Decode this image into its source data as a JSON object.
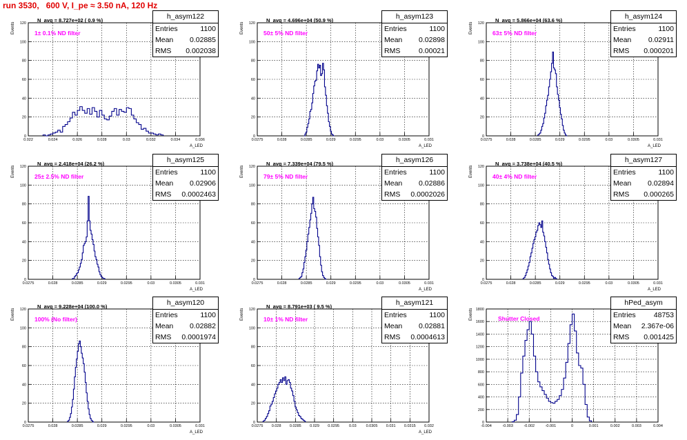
{
  "run_title": "run 3530,   600 V, I_pe ≈ 3.50 nA, 120 Hz",
  "stat_labels": {
    "entries": "Entries",
    "mean": "Mean",
    "rms": "RMS"
  },
  "chart_data": [
    {
      "type": "histogram",
      "name": "h_asym122",
      "title": "N_avg = 8.727e+02 ( 0.9 %)",
      "annotation": "1± 0.1% ND filter",
      "ylabel": "Events",
      "xlabel": "A_LED",
      "stats": {
        "entries": "1100",
        "mean": "0.02885",
        "rms": "0.002038"
      },
      "xlim": [
        0.022,
        0.036
      ],
      "ylim": [
        0,
        120
      ],
      "xticks": [
        0.022,
        0.024,
        0.026,
        0.028,
        0.03,
        0.032,
        0.034,
        0.036
      ],
      "xtick_labels": [
        "0.022",
        "0.024",
        "0.026",
        "0.028",
        "0.03",
        "0.032",
        "0.034",
        "0.036"
      ],
      "yticks": [
        0,
        20,
        40,
        60,
        80,
        100,
        120
      ],
      "ytick_labels": [
        "0",
        "20",
        "40",
        "60",
        "80",
        "100",
        "120"
      ],
      "bins": {
        "start": 0.0232,
        "width": 0.0002,
        "values": [
          1,
          0,
          1,
          2,
          3,
          4,
          6,
          4,
          10,
          12,
          15,
          19,
          25,
          22,
          27,
          31,
          27,
          24,
          29,
          23,
          30,
          26,
          20,
          27,
          22,
          18,
          17,
          21,
          26,
          29,
          22,
          28,
          26,
          25,
          30,
          29,
          22,
          18,
          14,
          12,
          7,
          8,
          5,
          3,
          3,
          2,
          1,
          2,
          1
        ]
      }
    },
    {
      "type": "histogram",
      "name": "h_asym123",
      "title": "N_avg = 4.696e+04 (50.9 %)",
      "annotation": "50± 5% ND filter",
      "ylabel": "Events",
      "xlabel": "A_LED",
      "stats": {
        "entries": "1100",
        "mean": "0.02898",
        "rms": "0.00021"
      },
      "xlim": [
        0.0275,
        0.031
      ],
      "ylim": [
        0,
        120
      ],
      "xticks": [
        0.0275,
        0.028,
        0.0285,
        0.029,
        0.0295,
        0.03,
        0.0305,
        0.031
      ],
      "xtick_labels": [
        "0.0275",
        "0.028",
        "0.0285",
        "0.029",
        "0.0295",
        "0.03",
        "0.0305",
        "0.031"
      ],
      "yticks": [
        0,
        20,
        40,
        60,
        80,
        100,
        120
      ],
      "ytick_labels": [
        "0",
        "20",
        "40",
        "60",
        "80",
        "100",
        "120"
      ],
      "bins": {
        "start": 0.02845,
        "width": 2e-05,
        "values": [
          0,
          2,
          4,
          9,
          13,
          18,
          26,
          28,
          35,
          45,
          53,
          58,
          59,
          69,
          76,
          72,
          75,
          64,
          66,
          77,
          70,
          52,
          43,
          32,
          24,
          15,
          10,
          5,
          2,
          1,
          0
        ]
      }
    },
    {
      "type": "histogram",
      "name": "h_asym124",
      "title": "N_avg = 5.866e+04 (63.6 %)",
      "annotation": "63± 5% ND filter",
      "ylabel": "Events",
      "xlabel": "A_LED",
      "stats": {
        "entries": "1100",
        "mean": "0.02911",
        "rms": "0.000201"
      },
      "xlim": [
        0.0275,
        0.031
      ],
      "ylim": [
        0,
        120
      ],
      "xticks": [
        0.0275,
        0.028,
        0.0285,
        0.029,
        0.0295,
        0.03,
        0.0305,
        0.031
      ],
      "xtick_labels": [
        "0.0275",
        "0.028",
        "0.0285",
        "0.029",
        "0.0295",
        "0.03",
        "0.0305",
        "0.031"
      ],
      "yticks": [
        0,
        20,
        40,
        60,
        80,
        100,
        120
      ],
      "ytick_labels": [
        "0",
        "20",
        "40",
        "60",
        "80",
        "100",
        "120"
      ],
      "bins": {
        "start": 0.02855,
        "width": 2e-05,
        "values": [
          1,
          2,
          3,
          6,
          10,
          13,
          19,
          24,
          32,
          38,
          43,
          52,
          60,
          68,
          77,
          89,
          72,
          70,
          66,
          52,
          44,
          38,
          30,
          23,
          18,
          11,
          6,
          3,
          1,
          0
        ]
      }
    },
    {
      "type": "histogram",
      "name": "h_asym125",
      "title": "N_avg = 2.418e+04 (26.2 %)",
      "annotation": "25± 2.5% ND filter",
      "ylabel": "Events",
      "xlabel": "A_LED",
      "stats": {
        "entries": "1100",
        "mean": "0.02906",
        "rms": "0.0002463"
      },
      "xlim": [
        0.0275,
        0.031
      ],
      "ylim": [
        0,
        120
      ],
      "xticks": [
        0.0275,
        0.028,
        0.0285,
        0.029,
        0.0295,
        0.03,
        0.0305,
        0.031
      ],
      "xtick_labels": [
        "0.0275",
        "0.028",
        "0.0285",
        "0.029",
        "0.0295",
        "0.03",
        "0.0305",
        "0.031"
      ],
      "yticks": [
        0,
        20,
        40,
        60,
        80,
        100,
        120
      ],
      "ytick_labels": [
        "0",
        "20",
        "40",
        "60",
        "80",
        "100",
        "120"
      ],
      "bins": {
        "start": 0.0284,
        "width": 2e-05,
        "values": [
          1,
          1,
          3,
          4,
          6,
          7,
          10,
          13,
          17,
          21,
          28,
          36,
          38,
          40,
          45,
          62,
          88,
          62,
          52,
          48,
          42,
          37,
          30,
          24,
          21,
          16,
          13,
          8,
          5,
          3,
          2,
          1,
          1
        ]
      }
    },
    {
      "type": "histogram",
      "name": "h_asym126",
      "title": "N_avg = 7.339e+04 (79.5 %)",
      "annotation": "79± 5% ND filter",
      "ylabel": "Events",
      "xlabel": "A_LED",
      "stats": {
        "entries": "1100",
        "mean": "0.02886",
        "rms": "0.0002026"
      },
      "xlim": [
        0.0275,
        0.031
      ],
      "ylim": [
        0,
        120
      ],
      "xticks": [
        0.0275,
        0.028,
        0.0285,
        0.029,
        0.0295,
        0.03,
        0.0305,
        0.031
      ],
      "xtick_labels": [
        "0.0275",
        "0.028",
        "0.0285",
        "0.029",
        "0.0295",
        "0.03",
        "0.0305",
        "0.031"
      ],
      "yticks": [
        0,
        20,
        40,
        60,
        80,
        100,
        120
      ],
      "ytick_labels": [
        "0",
        "20",
        "40",
        "60",
        "80",
        "100",
        "120"
      ],
      "bins": {
        "start": 0.02835,
        "width": 2e-05,
        "values": [
          1,
          2,
          3,
          7,
          11,
          18,
          24,
          31,
          40,
          48,
          55,
          63,
          70,
          80,
          87,
          75,
          72,
          66,
          54,
          45,
          36,
          24,
          15,
          8,
          4,
          2,
          1,
          0
        ]
      }
    },
    {
      "type": "histogram",
      "name": "h_asym127",
      "title": "N_avg = 3.738e+04 (40.5 %)",
      "annotation": "40± 4% ND filter",
      "ylabel": "Events",
      "xlabel": "A_LED",
      "stats": {
        "entries": "1100",
        "mean": "0.02894",
        "rms": "0.000265"
      },
      "xlim": [
        0.0275,
        0.031
      ],
      "ylim": [
        0,
        120
      ],
      "xticks": [
        0.0275,
        0.028,
        0.0285,
        0.029,
        0.0295,
        0.03,
        0.0305,
        0.031
      ],
      "xtick_labels": [
        "0.0275",
        "0.028",
        "0.0285",
        "0.029",
        "0.0295",
        "0.03",
        "0.0305",
        "0.031"
      ],
      "yticks": [
        0,
        20,
        40,
        60,
        80,
        100,
        120
      ],
      "ytick_labels": [
        "0",
        "20",
        "40",
        "60",
        "80",
        "100",
        "120"
      ],
      "bins": {
        "start": 0.02825,
        "width": 2e-05,
        "values": [
          1,
          2,
          4,
          7,
          10,
          14,
          18,
          24,
          28,
          33,
          38,
          42,
          45,
          50,
          52,
          57,
          60,
          58,
          55,
          62,
          50,
          46,
          40,
          34,
          28,
          21,
          16,
          11,
          7,
          4,
          3,
          1,
          2,
          1
        ]
      }
    },
    {
      "type": "histogram",
      "name": "h_asym120",
      "title": "N_avg = 9.228e+04 (100.0 %)",
      "annotation": "100% (No filter)",
      "ylabel": "Events",
      "xlabel": "A_LED",
      "stats": {
        "entries": "1100",
        "mean": "0.02882",
        "rms": "0.0001974"
      },
      "xlim": [
        0.0275,
        0.031
      ],
      "ylim": [
        0,
        120
      ],
      "xticks": [
        0.0275,
        0.028,
        0.0285,
        0.029,
        0.0295,
        0.03,
        0.0305,
        0.031
      ],
      "xtick_labels": [
        "0.0275",
        "0.028",
        "0.0285",
        "0.029",
        "0.0295",
        "0.03",
        "0.0305",
        "0.031"
      ],
      "yticks": [
        0,
        20,
        40,
        60,
        80,
        100,
        120
      ],
      "ytick_labels": [
        "0",
        "20",
        "40",
        "60",
        "80",
        "100",
        "120"
      ],
      "bins": {
        "start": 0.0283,
        "width": 2e-05,
        "values": [
          1,
          2,
          5,
          9,
          16,
          24,
          35,
          48,
          58,
          67,
          75,
          83,
          86,
          80,
          73,
          68,
          62,
          53,
          42,
          31,
          22,
          14,
          8,
          4,
          2,
          1,
          0
        ]
      }
    },
    {
      "type": "histogram",
      "name": "h_asym121",
      "title": "N_avg = 8.791e+03 ( 9.5 %)",
      "annotation": "10± 1% ND filter",
      "ylabel": "Events",
      "xlabel": "A_LED",
      "stats": {
        "entries": "1100",
        "mean": "0.02881",
        "rms": "0.0004613"
      },
      "xlim": [
        0.0275,
        0.032
      ],
      "ylim": [
        0,
        120
      ],
      "xticks": [
        0.0275,
        0.028,
        0.0285,
        0.029,
        0.0295,
        0.03,
        0.0305,
        0.031,
        0.0315,
        0.032
      ],
      "xtick_labels": [
        "0.0275",
        "0.028",
        "0.0285",
        "0.029",
        "0.0295",
        "0.03",
        "0.0305",
        "0.031",
        "0.0315",
        "0.032"
      ],
      "yticks": [
        0,
        20,
        40,
        60,
        80,
        100,
        120
      ],
      "ytick_labels": [
        "0",
        "20",
        "40",
        "60",
        "80",
        "100",
        "120"
      ],
      "bins": {
        "start": 0.02765,
        "width": 3e-05,
        "values": [
          1,
          2,
          4,
          6,
          9,
          12,
          17,
          19,
          22,
          26,
          30,
          33,
          36,
          40,
          42,
          45,
          42,
          47,
          44,
          48,
          40,
          44,
          45,
          42,
          36,
          33,
          28,
          22,
          16,
          13,
          10,
          7,
          6,
          4,
          3,
          2,
          1
        ]
      }
    },
    {
      "type": "histogram",
      "name": "hPed_asym",
      "title": "",
      "annotation": "Shutter Closed",
      "ylabel": "Events",
      "xlabel": "",
      "stats": {
        "entries": "48753",
        "mean": "2.367e-06",
        "rms": "0.001425"
      },
      "xlim": [
        -0.004,
        0.004
      ],
      "ylim": [
        0,
        1800
      ],
      "xticks": [
        -0.004,
        -0.003,
        -0.002,
        -0.001,
        0,
        0.001,
        0.002,
        0.003,
        0.004
      ],
      "xtick_labels": [
        "-0.004",
        "-0.003",
        "-0.002",
        "-0.001",
        "0",
        "0.001",
        "0.002",
        "0.003",
        "0.004"
      ],
      "yticks": [
        0,
        200,
        400,
        600,
        800,
        1000,
        1200,
        1400,
        1600,
        1800
      ],
      "ytick_labels": [
        "0",
        "200",
        "400",
        "600",
        "800",
        "1000",
        "1200",
        "1400",
        "1600",
        "1800"
      ],
      "bins": {
        "start": -0.0028,
        "width": 0.0001,
        "values": [
          5,
          30,
          120,
          400,
          780,
          1050,
          1300,
          1470,
          1600,
          1400,
          1050,
          800,
          640,
          560,
          500,
          440,
          380,
          330,
          310,
          300,
          330,
          360,
          420,
          520,
          700,
          950,
          1250,
          1550,
          1720,
          1450,
          1100,
          900,
          860,
          600,
          280,
          80,
          20
        ]
      }
    }
  ]
}
